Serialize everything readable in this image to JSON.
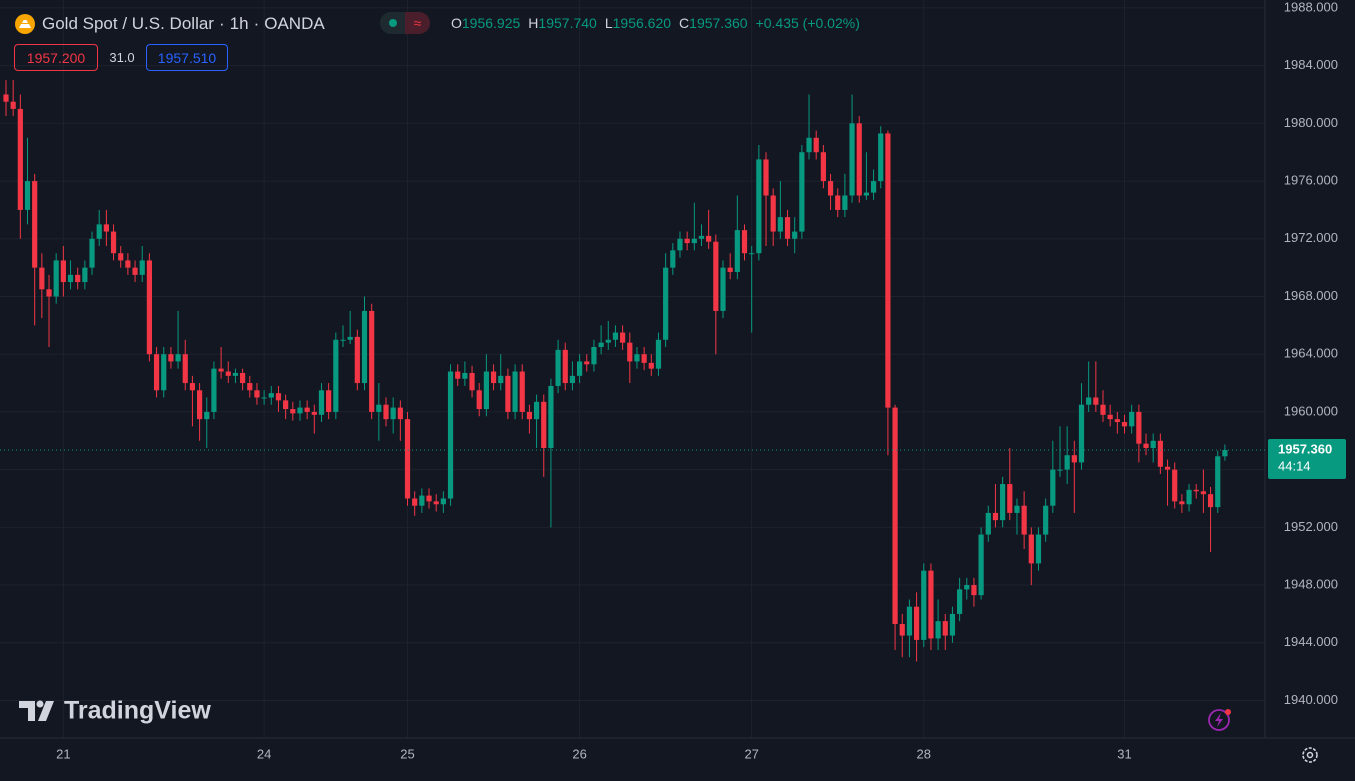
{
  "chart_data": {
    "type": "candlestick",
    "title": "Gold Spot / U.S. Dollar",
    "interval": "1h",
    "source": "OANDA",
    "legend": [
      {
        "key": "O",
        "value": "1956.925"
      },
      {
        "key": "H",
        "value": "1957.740"
      },
      {
        "key": "L",
        "value": "1956.620"
      },
      {
        "key": "C",
        "value": "1957.360"
      }
    ],
    "change": "+0.435 (+0.02%)",
    "bid": "1957.200",
    "spread": "31.0",
    "ask": "1957.510",
    "last_price_label": "1957.360",
    "countdown": "44:14",
    "brand": "TradingView",
    "up_color": "#089981",
    "down_color": "#f23645",
    "categories": [
      null,
      null,
      null,
      null,
      null,
      null,
      null,
      null,
      "21",
      null,
      null,
      null,
      null,
      null,
      null,
      null,
      null,
      null,
      null,
      null,
      null,
      null,
      null,
      null,
      null,
      null,
      null,
      null,
      null,
      null,
      null,
      null,
      null,
      null,
      null,
      null,
      "24",
      null,
      null,
      null,
      null,
      null,
      null,
      null,
      null,
      null,
      null,
      null,
      null,
      null,
      null,
      null,
      null,
      null,
      null,
      null,
      "25",
      null,
      null,
      null,
      null,
      null,
      null,
      null,
      null,
      null,
      null,
      null,
      null,
      null,
      null,
      null,
      null,
      null,
      null,
      null,
      null,
      null,
      null,
      null,
      "26",
      null,
      null,
      null,
      null,
      null,
      null,
      null,
      null,
      null,
      null,
      null,
      null,
      null,
      null,
      null,
      null,
      null,
      null,
      null,
      null,
      null,
      null,
      null,
      "27",
      null,
      null,
      null,
      null,
      null,
      null,
      null,
      null,
      null,
      null,
      null,
      null,
      null,
      null,
      null,
      null,
      null,
      null,
      null,
      null,
      null,
      null,
      null,
      "28",
      null,
      null,
      null,
      null,
      null,
      null,
      null,
      null,
      null,
      null,
      null,
      null,
      null,
      null,
      null,
      null,
      null,
      null,
      null,
      null,
      null,
      null,
      null,
      null,
      null,
      null,
      null,
      "31",
      null,
      null,
      null,
      null,
      null,
      null,
      null,
      null,
      null,
      null,
      null,
      null,
      null,
      null
    ],
    "open": [
      1982,
      1981.5,
      1981,
      1974,
      1976,
      1970,
      1968.5,
      1968,
      1970.5,
      1969,
      1969.5,
      1969,
      1970,
      1972,
      1973,
      1972.5,
      1971,
      1970.5,
      1970,
      1969.5,
      1970.5,
      1964,
      1961.5,
      1964,
      1963.5,
      1964,
      1962,
      1961.5,
      1959.5,
      1960,
      1963,
      1962.8,
      1962.5,
      1962.7,
      1962,
      1961.5,
      1961,
      1961,
      1961.3,
      1960.8,
      1960.2,
      1959.9,
      1960.3,
      1960,
      1959.8,
      1961.5,
      1960,
      1965,
      1965,
      1965.2,
      1962,
      1967,
      1960,
      1960.5,
      1959.5,
      1960.3,
      1959.5,
      1954,
      1953.5,
      1954.2,
      1953.8,
      1953.6,
      1954,
      1962.8,
      1962.3,
      1962.7,
      1961.5,
      1960.2,
      1962.8,
      1962,
      1962.5,
      1960,
      1962.8,
      1960,
      1959.5,
      1960.7,
      1957.5,
      1961.8,
      1964.3,
      1962,
      1962.5,
      1963.5,
      1963.3,
      1964.5,
      1964.8,
      1965,
      1965.5,
      1964.8,
      1963.5,
      1964,
      1963.4,
      1963,
      1965,
      1970,
      1971.2,
      1972,
      1971.7,
      1972,
      1972.2,
      1971.8,
      1967,
      1970,
      1969.7,
      1972.6,
      1971,
      1971,
      1977.5,
      1975,
      1972.5,
      1973.5,
      1972,
      1972.5,
      1978,
      1979,
      1978,
      1976,
      1975,
      1974,
      1975,
      1980,
      1975,
      1975.2,
      1976,
      1979.3,
      1960.3,
      1945.3,
      1944.5,
      1946.5,
      1944.2,
      1949,
      1944.3,
      1945.5,
      1944.5,
      1946,
      1947.7,
      1948,
      1947.3,
      1951.5,
      1953,
      1952.5,
      1955,
      1953,
      1953.5,
      1951.5,
      1949.5,
      1951.5,
      1953.5,
      1956,
      1956,
      1957,
      1956.5,
      1960.5,
      1961,
      1960.5,
      1959.8,
      1959.5,
      1959.3,
      1959,
      1960,
      1957.8,
      1957.5,
      1958,
      1956.2,
      1956,
      1953.8,
      1953.6,
      1954.6,
      1954.5,
      1954.3,
      1953.4,
      1956.925
    ],
    "high": [
      1983,
      1983,
      1982,
      1979,
      1976.5,
      1971,
      1969.5,
      1971,
      1971.5,
      1970.5,
      1970,
      1970.5,
      1972.5,
      1974,
      1974,
      1973,
      1971.5,
      1971,
      1970.5,
      1971.5,
      1971,
      1964.5,
      1964.5,
      1964.5,
      1967,
      1965,
      1962.5,
      1962,
      1961,
      1963.5,
      1964.5,
      1963.5,
      1963,
      1963,
      1962.5,
      1962,
      1961.5,
      1961.8,
      1961.8,
      1961.2,
      1960.7,
      1960.8,
      1960.8,
      1960.5,
      1962,
      1962,
      1965.5,
      1966,
      1967,
      1965.7,
      1968,
      1967.5,
      1962,
      1961,
      1961,
      1960.8,
      1960,
      1954.5,
      1954.7,
      1954.7,
      1954.3,
      1954.5,
      1963.3,
      1963.3,
      1963.5,
      1963.2,
      1962,
      1964,
      1963.3,
      1964,
      1963,
      1963.3,
      1963.3,
      1960.5,
      1961.2,
      1961.2,
      1962.3,
      1965,
      1964.8,
      1963.5,
      1964,
      1964,
      1965,
      1966,
      1966.3,
      1966,
      1966,
      1965.5,
      1964.5,
      1964.5,
      1964,
      1965.5,
      1971,
      1971.7,
      1972.5,
      1972.5,
      1974.5,
      1973,
      1974,
      1972.3,
      1970.5,
      1971,
      1975,
      1973,
      1971.5,
      1978.5,
      1978,
      1975.5,
      1976,
      1974,
      1973.5,
      1978.5,
      1982,
      1979.5,
      1978.5,
      1976.5,
      1975.5,
      1976.5,
      1982,
      1980.5,
      1978,
      1976.8,
      1979.8,
      1979.5,
      1960.5,
      1946,
      1947,
      1947.5,
      1949.5,
      1949.5,
      1947,
      1946,
      1946.5,
      1948.5,
      1948.5,
      1948.5,
      1952,
      1953.5,
      1955,
      1955.5,
      1957.5,
      1954,
      1954.5,
      1952,
      1952,
      1954,
      1958,
      1959,
      1959,
      1958,
      1962,
      1963.5,
      1963.5,
      1961.5,
      1960.5,
      1960,
      1959.8,
      1960.5,
      1960.5,
      1958.5,
      1958.5,
      1958.5,
      1956.7,
      1956.5,
      1954.3,
      1955,
      1955,
      1956,
      1954.8,
      1957.3,
      1957.74
    ],
    "low": [
      1980.5,
      1980.5,
      1972,
      1973,
      1966,
      1966.5,
      1964.5,
      1967.5,
      1968,
      1968.5,
      1968.5,
      1968.5,
      1969.5,
      1971.5,
      1971.5,
      1970.5,
      1970,
      1969.5,
      1969,
      1969,
      1963.5,
      1961,
      1961,
      1963,
      1963,
      1961.5,
      1959,
      1958,
      1957.5,
      1959.5,
      1962.3,
      1962,
      1962,
      1961.5,
      1961,
      1960.5,
      1960.5,
      1960.5,
      1960,
      1959.5,
      1959.4,
      1959.4,
      1959.5,
      1958.5,
      1959.3,
      1959.5,
      1959.5,
      1964.5,
      1964.7,
      1961.5,
      1961.5,
      1959.5,
      1958,
      1959,
      1958.5,
      1958,
      1953.5,
      1952.8,
      1953,
      1953.3,
      1953.1,
      1953,
      1953.5,
      1961.8,
      1961.8,
      1961,
      1959.7,
      1959.7,
      1961.5,
      1961.5,
      1959.5,
      1959.5,
      1959.5,
      1958.5,
      1957.5,
      1955.5,
      1952,
      1961.3,
      1961.5,
      1961.5,
      1962,
      1962.8,
      1962.8,
      1964,
      1964.3,
      1964.5,
      1964.3,
      1962,
      1963,
      1962.9,
      1962.5,
      1962.5,
      1964.5,
      1969.5,
      1970.7,
      1971.2,
      1971.2,
      1971.5,
      1971.3,
      1964,
      1966.5,
      1969.2,
      1969.2,
      1970.5,
      1965.5,
      1970.5,
      1971.5,
      1971.5,
      1972,
      1971.5,
      1971,
      1972,
      1977.5,
      1977.5,
      1975.5,
      1974,
      1973.5,
      1973.5,
      1974.5,
      1974.5,
      1974.7,
      1974.7,
      1975.5,
      1957,
      1943.5,
      1943,
      1943,
      1942.7,
      1943.7,
      1943.5,
      1943.5,
      1943.5,
      1944,
      1945.5,
      1947,
      1946.5,
      1947,
      1951,
      1952,
      1952,
      1952.5,
      1951.5,
      1950.5,
      1948,
      1949,
      1951,
      1953,
      1955.5,
      1955,
      1953,
      1956,
      1960,
      1960,
      1959.3,
      1959,
      1958.5,
      1958.5,
      1958.5,
      1956.5,
      1957,
      1956.5,
      1955.7,
      1953.5,
      1953.3,
      1953,
      1953.1,
      1954,
      1953,
      1950.3,
      1953,
      1956.62
    ],
    "close": [
      1981.5,
      1981,
      1974,
      1976,
      1970,
      1968.5,
      1968,
      1970.5,
      1969,
      1969.5,
      1969,
      1970,
      1972,
      1973,
      1972.5,
      1971,
      1970.5,
      1970,
      1969.5,
      1970.5,
      1964,
      1961.5,
      1964,
      1963.5,
      1964,
      1962,
      1961.5,
      1959.5,
      1960,
      1963,
      1962.8,
      1962.5,
      1962.7,
      1962,
      1961.5,
      1961,
      1961,
      1961.3,
      1960.8,
      1960.2,
      1959.9,
      1960.3,
      1960,
      1959.8,
      1961.5,
      1960,
      1965,
      1965,
      1965.2,
      1962,
      1967,
      1960,
      1960.5,
      1959.5,
      1960.3,
      1959.5,
      1954,
      1953.5,
      1954.2,
      1953.8,
      1953.6,
      1954,
      1962.8,
      1962.3,
      1962.7,
      1961.5,
      1960.2,
      1962.8,
      1962,
      1962.5,
      1960,
      1962.8,
      1960,
      1959.5,
      1960.7,
      1957.5,
      1961.8,
      1964.3,
      1962,
      1962.5,
      1963.5,
      1963.3,
      1964.5,
      1964.8,
      1965,
      1965.5,
      1964.8,
      1963.5,
      1964,
      1963.4,
      1963,
      1965,
      1970,
      1971.2,
      1972,
      1971.7,
      1972,
      1972.2,
      1971.8,
      1967,
      1970,
      1969.7,
      1972.6,
      1971,
      1971,
      1977.5,
      1975,
      1972.5,
      1973.5,
      1972,
      1972.5,
      1978,
      1979,
      1978,
      1976,
      1975,
      1974,
      1975,
      1980,
      1975,
      1975.2,
      1976,
      1979.3,
      1960.3,
      1945.3,
      1944.5,
      1946.5,
      1944.2,
      1949,
      1944.3,
      1945.5,
      1944.5,
      1946,
      1947.7,
      1948,
      1947.3,
      1951.5,
      1953,
      1952.5,
      1955,
      1953,
      1953.5,
      1951.5,
      1949.5,
      1951.5,
      1953.5,
      1956,
      1956,
      1957,
      1956.5,
      1960.5,
      1961,
      1960.5,
      1959.8,
      1959.5,
      1959.3,
      1959,
      1960,
      1957.8,
      1957.5,
      1958,
      1956.2,
      1956,
      1953.8,
      1953.6,
      1954.6,
      1954.5,
      1954.3,
      1953.4,
      1956.925,
      1957.36
    ],
    "ylim": [
      1937.4,
      1988.55
    ],
    "yticks": [
      {
        "value": 1940,
        "label": "1940.000"
      },
      {
        "value": 1944,
        "label": "1944.000"
      },
      {
        "value": 1948,
        "label": "1948.000"
      },
      {
        "value": 1952,
        "label": "1952.000"
      },
      {
        "value": 1956,
        "label": "1956.000"
      },
      {
        "value": 1960,
        "label": "1960.000"
      },
      {
        "value": 1964,
        "label": "1964.000"
      },
      {
        "value": 1968,
        "label": "1968.000"
      },
      {
        "value": 1972,
        "label": "1972.000"
      },
      {
        "value": 1976,
        "label": "1976.000"
      },
      {
        "value": 1980,
        "label": "1980.000"
      },
      {
        "value": 1984,
        "label": "1984.000"
      },
      {
        "value": 1988,
        "label": "1988.000"
      }
    ],
    "grid": true
  }
}
